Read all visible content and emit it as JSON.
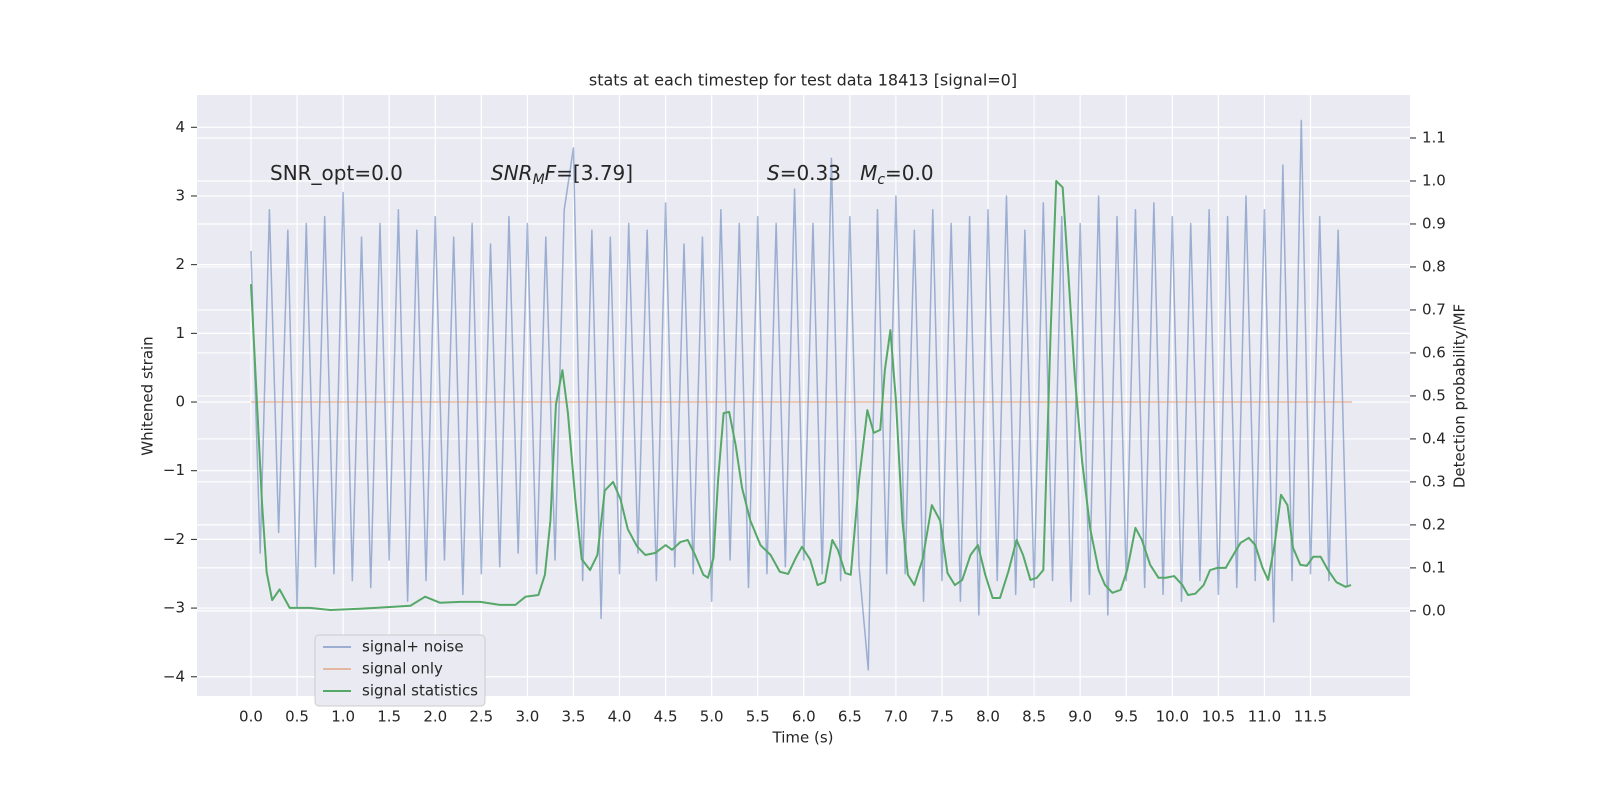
{
  "chart_data": {
    "type": "line",
    "title": "stats at each timestep for test data 18413 [signal=0]",
    "xlabel": "Time (s)",
    "ylabel": "Whitened strain",
    "y2label": "Detection probability/MF",
    "xlim": [
      -0.586,
      12.58
    ],
    "ylim": [
      -4.28,
      4.47
    ],
    "y2lim": [
      -0.198,
      1.2
    ],
    "xticks": [
      {
        "value": 0,
        "label": "0.0"
      },
      {
        "value": 0.5,
        "label": "0.5"
      },
      {
        "value": 1,
        "label": "1.0"
      },
      {
        "value": 1.5,
        "label": "1.5"
      },
      {
        "value": 2,
        "label": "2.0"
      },
      {
        "value": 2.5,
        "label": "2.5"
      },
      {
        "value": 3,
        "label": "3.0"
      },
      {
        "value": 3.5,
        "label": "3.5"
      },
      {
        "value": 4,
        "label": "4.0"
      },
      {
        "value": 4.5,
        "label": "4.5"
      },
      {
        "value": 5,
        "label": "5.0"
      },
      {
        "value": 5.5,
        "label": "5.5"
      },
      {
        "value": 6,
        "label": "6.0"
      },
      {
        "value": 6.5,
        "label": "6.5"
      },
      {
        "value": 7,
        "label": "7.0"
      },
      {
        "value": 7.5,
        "label": "7.5"
      },
      {
        "value": 8,
        "label": "8.0"
      },
      {
        "value": 8.5,
        "label": "8.5"
      },
      {
        "value": 9,
        "label": "9.0"
      },
      {
        "value": 9.5,
        "label": "9.5"
      },
      {
        "value": 10,
        "label": "10.0"
      },
      {
        "value": 10.5,
        "label": "10.5"
      },
      {
        "value": 11,
        "label": "11.0"
      },
      {
        "value": 11.5,
        "label": "11.5"
      }
    ],
    "yticks": [
      {
        "value": -4,
        "label": "−4"
      },
      {
        "value": -3,
        "label": "−3"
      },
      {
        "value": -2,
        "label": "−2"
      },
      {
        "value": -1,
        "label": "−1"
      },
      0,
      1,
      2,
      3,
      4
    ],
    "y2ticks": [
      {
        "value": 0,
        "label": "0.0"
      },
      {
        "value": 0.1,
        "label": "0.1"
      },
      {
        "value": 0.2,
        "label": "0.2"
      },
      {
        "value": 0.3,
        "label": "0.3"
      },
      {
        "value": 0.4,
        "label": "0.4"
      },
      {
        "value": 0.5,
        "label": "0.5"
      },
      {
        "value": 0.6,
        "label": "0.6"
      },
      {
        "value": 0.7,
        "label": "0.7"
      },
      {
        "value": 0.8,
        "label": "0.8"
      },
      {
        "value": 0.9,
        "label": "0.9"
      },
      {
        "value": 1,
        "label": "1.0"
      },
      {
        "value": 1.1,
        "label": "1.1"
      }
    ],
    "grid": true,
    "legend": "lower left",
    "annotations": [
      [
        {
          "text": "SNR_opt=0.0"
        }
      ],
      [
        {
          "text": "SNR",
          "italic": true
        },
        {
          "text": "M",
          "italic": true,
          "sub": true
        },
        {
          "text": "F",
          "italic": true
        },
        {
          "text": "=[3.79]"
        }
      ],
      [
        {
          "text": "S",
          "italic": true
        },
        {
          "text": "=0.33   "
        },
        {
          "text": "M",
          "italic": true
        },
        {
          "text": "c",
          "italic": true,
          "sub": true
        },
        {
          "text": "=0.0"
        }
      ]
    ],
    "series": [
      {
        "name": "signal+ noise",
        "color": "#4c72b0",
        "opacity": 0.5,
        "axis": "y",
        "x": [
          0.0,
          0.1,
          0.2,
          0.3,
          0.4,
          0.5,
          0.6,
          0.7,
          0.8,
          0.9,
          1.0,
          1.1,
          1.2,
          1.3,
          1.4,
          1.5,
          1.6,
          1.7,
          1.8,
          1.9,
          2.0,
          2.1,
          2.2,
          2.3,
          2.4,
          2.5,
          2.6,
          2.7,
          2.8,
          2.9,
          3.0,
          3.1,
          3.2,
          3.3,
          3.4,
          3.5,
          3.6,
          3.7,
          3.8,
          3.9,
          4.0,
          4.1,
          4.2,
          4.3,
          4.4,
          4.5,
          4.6,
          4.7,
          4.8,
          4.9,
          5.0,
          5.1,
          5.2,
          5.3,
          5.4,
          5.5,
          5.6,
          5.7,
          5.8,
          5.9,
          6.0,
          6.1,
          6.2,
          6.3,
          6.4,
          6.5,
          6.6,
          6.7,
          6.8,
          6.9,
          7.0,
          7.1,
          7.2,
          7.3,
          7.4,
          7.5,
          7.6,
          7.7,
          7.8,
          7.9,
          8.0,
          8.1,
          8.2,
          8.3,
          8.4,
          8.5,
          8.6,
          8.7,
          8.8,
          8.9,
          9.0,
          9.1,
          9.2,
          9.3,
          9.4,
          9.5,
          9.6,
          9.7,
          9.8,
          9.9,
          10.0,
          10.1,
          10.2,
          10.3,
          10.4,
          10.5,
          10.6,
          10.7,
          10.8,
          10.9,
          11.0,
          11.1,
          11.2,
          11.3,
          11.4,
          11.5,
          11.6,
          11.7,
          11.8,
          11.9
        ],
        "values": [
          2.2,
          -2.2,
          2.8,
          -1.9,
          2.5,
          -3.0,
          2.6,
          -2.4,
          2.7,
          -2.5,
          3.05,
          -2.6,
          2.4,
          -2.7,
          2.6,
          -2.3,
          2.8,
          -2.9,
          2.5,
          -2.6,
          2.7,
          -2.3,
          2.4,
          -2.8,
          2.6,
          -2.5,
          2.3,
          -2.4,
          2.7,
          -2.2,
          2.6,
          -2.5,
          2.4,
          -2.3,
          2.8,
          3.7,
          -2.6,
          2.5,
          -3.15,
          2.4,
          -2.5,
          2.6,
          -2.2,
          2.5,
          -2.6,
          2.9,
          -2.4,
          2.3,
          -2.5,
          2.4,
          -2.9,
          2.8,
          -2.3,
          2.6,
          -2.7,
          2.7,
          -2.5,
          2.6,
          -2.4,
          3.1,
          -2.3,
          2.6,
          -2.5,
          3.55,
          -2.6,
          2.7,
          -2.4,
          -3.9,
          2.8,
          -2.5,
          3.0,
          -2.5,
          2.5,
          -2.9,
          2.8,
          -2.6,
          2.6,
          -2.9,
          2.7,
          -3.1,
          2.8,
          -2.6,
          3.0,
          -2.8,
          2.5,
          -2.7,
          2.9,
          -2.6,
          2.7,
          -2.9,
          2.6,
          -2.8,
          3.0,
          -3.1,
          2.7,
          -2.6,
          2.8,
          -2.7,
          2.9,
          -2.8,
          2.7,
          -2.9,
          2.6,
          -2.6,
          2.8,
          -2.8,
          2.7,
          -2.7,
          3.0,
          -2.6,
          2.8,
          -3.2,
          3.45,
          -2.6,
          4.1,
          -2.5,
          2.7,
          -2.6,
          2.5,
          -2.7
        ]
      },
      {
        "name": "signal only",
        "color": "#dd8452",
        "opacity": 0.5,
        "axis": "y",
        "x": [
          0.0,
          11.95
        ],
        "values": [
          0,
          0
        ]
      },
      {
        "name": "signal statistics",
        "color": "#55a868",
        "opacity": 1,
        "axis": "y2",
        "x": [
          0,
          0.08,
          0.12,
          0.17,
          0.23,
          0.31,
          0.42,
          0.64,
          0.86,
          1.18,
          1.51,
          1.73,
          1.89,
          2.05,
          2.27,
          2.49,
          2.7,
          2.87,
          2.98,
          3.12,
          3.19,
          3.25,
          3.31,
          3.38,
          3.44,
          3.52,
          3.59,
          3.68,
          3.76,
          3.84,
          3.93,
          4.01,
          4.09,
          4.19,
          4.28,
          4.39,
          4.5,
          4.57,
          4.66,
          4.74,
          4.82,
          4.91,
          4.96,
          5.02,
          5.07,
          5.13,
          5.19,
          5.26,
          5.33,
          5.42,
          5.53,
          5.64,
          5.74,
          5.83,
          5.92,
          5.98,
          6.07,
          6.15,
          6.23,
          6.31,
          6.37,
          6.45,
          6.51,
          6.6,
          6.69,
          6.76,
          6.83,
          6.88,
          6.94,
          7.0,
          7.07,
          7.13,
          7.2,
          7.29,
          7.39,
          7.48,
          7.56,
          7.64,
          7.72,
          7.81,
          7.89,
          7.97,
          8.05,
          8.13,
          8.22,
          8.31,
          8.38,
          8.46,
          8.53,
          8.6,
          8.68,
          8.74,
          8.81,
          8.87,
          8.94,
          9.02,
          9.11,
          9.2,
          9.27,
          9.35,
          9.44,
          9.51,
          9.6,
          9.67,
          9.76,
          9.85,
          9.93,
          10.02,
          10.11,
          10.17,
          10.25,
          10.34,
          10.41,
          10.49,
          10.58,
          10.65,
          10.74,
          10.83,
          10.9,
          10.98,
          11.04,
          11.11,
          11.18,
          11.25,
          11.31,
          11.39,
          11.46,
          11.53,
          11.61,
          11.69,
          11.78,
          11.88,
          11.94
        ],
        "values": [
          0.76,
          0.42,
          0.25,
          0.09,
          0.025,
          0.05,
          0.007,
          0.007,
          0.002,
          0.005,
          0.009,
          0.012,
          0.033,
          0.019,
          0.021,
          0.021,
          0.014,
          0.014,
          0.033,
          0.037,
          0.084,
          0.21,
          0.48,
          0.56,
          0.46,
          0.26,
          0.12,
          0.095,
          0.13,
          0.28,
          0.3,
          0.26,
          0.19,
          0.15,
          0.13,
          0.135,
          0.153,
          0.142,
          0.16,
          0.165,
          0.13,
          0.084,
          0.077,
          0.123,
          0.305,
          0.46,
          0.463,
          0.386,
          0.286,
          0.21,
          0.153,
          0.13,
          0.091,
          0.086,
          0.126,
          0.149,
          0.119,
          0.06,
          0.067,
          0.165,
          0.142,
          0.088,
          0.084,
          0.305,
          0.467,
          0.414,
          0.421,
          0.56,
          0.653,
          0.49,
          0.21,
          0.084,
          0.06,
          0.12,
          0.246,
          0.21,
          0.088,
          0.06,
          0.072,
          0.13,
          0.153,
          0.084,
          0.03,
          0.03,
          0.091,
          0.165,
          0.13,
          0.072,
          0.077,
          0.095,
          0.653,
          1.0,
          0.985,
          0.79,
          0.55,
          0.35,
          0.19,
          0.095,
          0.06,
          0.042,
          0.049,
          0.095,
          0.193,
          0.165,
          0.107,
          0.077,
          0.077,
          0.081,
          0.06,
          0.037,
          0.04,
          0.06,
          0.095,
          0.1,
          0.1,
          0.126,
          0.158,
          0.17,
          0.153,
          0.1,
          0.072,
          0.153,
          0.27,
          0.246,
          0.147,
          0.107,
          0.105,
          0.126,
          0.126,
          0.095,
          0.067,
          0.056,
          0.06
        ]
      }
    ]
  }
}
